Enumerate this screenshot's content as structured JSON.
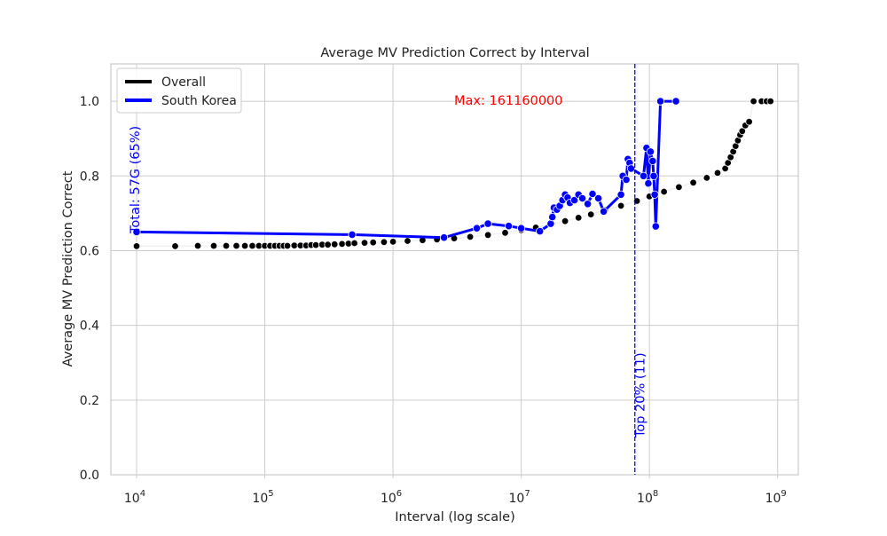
{
  "chart_data": {
    "type": "line",
    "title": "Average MV Prediction Correct by Interval",
    "xlabel": "Interval (log scale)",
    "ylabel": "Average MV Prediction Correct",
    "x_scale": "log",
    "xlim": [
      6300,
      1450000000
    ],
    "ylim": [
      0.0,
      1.1
    ],
    "grid": true,
    "legend_position": "top-left",
    "x_ticks": [
      {
        "value": 10000,
        "base": "10",
        "exp": "4"
      },
      {
        "value": 100000,
        "base": "10",
        "exp": "5"
      },
      {
        "value": 1000000,
        "base": "10",
        "exp": "6"
      },
      {
        "value": 10000000,
        "base": "10",
        "exp": "7"
      },
      {
        "value": 100000000,
        "base": "10",
        "exp": "8"
      },
      {
        "value": 1000000000,
        "base": "10",
        "exp": "9"
      }
    ],
    "y_ticks": [
      {
        "value": 0.0,
        "label": "0.0"
      },
      {
        "value": 0.2,
        "label": "0.2"
      },
      {
        "value": 0.4,
        "label": "0.4"
      },
      {
        "value": 0.6,
        "label": "0.6"
      },
      {
        "value": 0.8,
        "label": "0.8"
      },
      {
        "value": 1.0,
        "label": "1.0"
      }
    ],
    "series": [
      {
        "name": "Overall",
        "color": "#000000",
        "line_color": "#f0f0f0",
        "points": [
          [
            10000,
            0.612
          ],
          [
            20000,
            0.612
          ],
          [
            30000,
            0.613
          ],
          [
            40000,
            0.613
          ],
          [
            50000,
            0.613
          ],
          [
            60000,
            0.613
          ],
          [
            70000,
            0.613
          ],
          [
            80000,
            0.613
          ],
          [
            90000,
            0.613
          ],
          [
            100000,
            0.613
          ],
          [
            110000,
            0.613
          ],
          [
            120000,
            0.613
          ],
          [
            130000,
            0.613
          ],
          [
            140000,
            0.613
          ],
          [
            150000,
            0.613
          ],
          [
            170000,
            0.614
          ],
          [
            190000,
            0.614
          ],
          [
            210000,
            0.614
          ],
          [
            230000,
            0.615
          ],
          [
            250000,
            0.615
          ],
          [
            280000,
            0.616
          ],
          [
            310000,
            0.616
          ],
          [
            350000,
            0.617
          ],
          [
            400000,
            0.618
          ],
          [
            450000,
            0.619
          ],
          [
            500000,
            0.62
          ],
          [
            600000,
            0.621
          ],
          [
            700000,
            0.622
          ],
          [
            850000,
            0.623
          ],
          [
            1000000,
            0.624
          ],
          [
            1300000,
            0.626
          ],
          [
            1700000,
            0.628
          ],
          [
            2200000,
            0.63
          ],
          [
            3000000,
            0.633
          ],
          [
            4000000,
            0.637
          ],
          [
            5500000,
            0.642
          ],
          [
            7500000,
            0.648
          ],
          [
            10000000,
            0.655
          ],
          [
            13000000,
            0.662
          ],
          [
            17000000,
            0.67
          ],
          [
            22000000,
            0.679
          ],
          [
            28000000,
            0.688
          ],
          [
            35000000,
            0.697
          ],
          [
            45000000,
            0.708
          ],
          [
            60000000,
            0.72
          ],
          [
            80000000,
            0.733
          ],
          [
            100000000,
            0.745
          ],
          [
            130000000,
            0.758
          ],
          [
            170000000,
            0.77
          ],
          [
            220000000,
            0.782
          ],
          [
            280000000,
            0.795
          ],
          [
            340000000,
            0.808
          ],
          [
            390000000,
            0.82
          ],
          [
            410000000,
            0.835
          ],
          [
            430000000,
            0.85
          ],
          [
            450000000,
            0.865
          ],
          [
            470000000,
            0.88
          ],
          [
            490000000,
            0.895
          ],
          [
            510000000,
            0.91
          ],
          [
            530000000,
            0.92
          ],
          [
            560000000,
            0.935
          ],
          [
            600000000,
            0.945
          ],
          [
            650000000,
            1.0
          ],
          [
            750000000,
            1.0
          ],
          [
            820000000,
            1.0
          ],
          [
            880000000,
            1.0
          ]
        ]
      },
      {
        "name": "South Korea",
        "color": "#0000ff",
        "line_color": "#0000ff",
        "points": [
          [
            10000,
            0.65
          ],
          [
            480000,
            0.643
          ],
          [
            2500000,
            0.635
          ],
          [
            4500000,
            0.66
          ],
          [
            5500000,
            0.672
          ],
          [
            8000000,
            0.666
          ],
          [
            10000000,
            0.66
          ],
          [
            14000000,
            0.652
          ],
          [
            17000000,
            0.672
          ],
          [
            17500000,
            0.69
          ],
          [
            18000000,
            0.715
          ],
          [
            19000000,
            0.71
          ],
          [
            20000000,
            0.72
          ],
          [
            21000000,
            0.735
          ],
          [
            22000000,
            0.75
          ],
          [
            23000000,
            0.742
          ],
          [
            24000000,
            0.728
          ],
          [
            26000000,
            0.735
          ],
          [
            28000000,
            0.75
          ],
          [
            30000000,
            0.74
          ],
          [
            33000000,
            0.725
          ],
          [
            36000000,
            0.752
          ],
          [
            40000000,
            0.74
          ],
          [
            44000000,
            0.705
          ],
          [
            60000000,
            0.75
          ],
          [
            62000000,
            0.8
          ],
          [
            66000000,
            0.79
          ],
          [
            68000000,
            0.845
          ],
          [
            70000000,
            0.835
          ],
          [
            72000000,
            0.82
          ],
          [
            90000000,
            0.8
          ],
          [
            95000000,
            0.875
          ],
          [
            98000000,
            0.78
          ],
          [
            102000000,
            0.865
          ],
          [
            106000000,
            0.84
          ],
          [
            108000000,
            0.8
          ],
          [
            110000000,
            0.75
          ],
          [
            112000000,
            0.665
          ],
          [
            122000000,
            1.0
          ],
          [
            161160000,
            1.0
          ]
        ]
      }
    ],
    "annotations": {
      "max_text": "Max: 161160000",
      "total_text": "Total: 57G (65%)",
      "top_text": "Top 20% (11)",
      "top_line_x": 77000000,
      "max_text_color": "#ff0000",
      "annotation_color": "#0000ff"
    }
  }
}
